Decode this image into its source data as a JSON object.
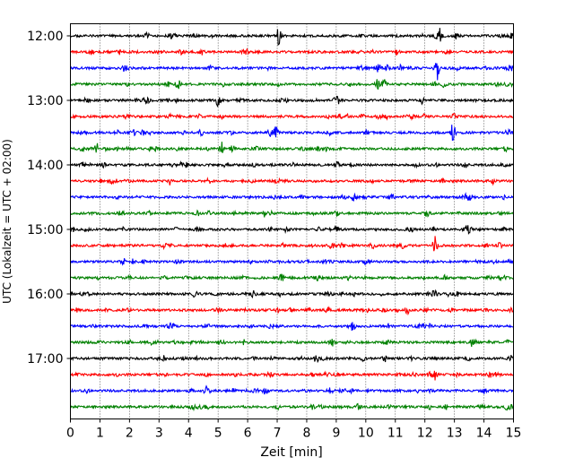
{
  "chart_data": {
    "type": "line",
    "title": "",
    "xlabel": "Zeit  [min]",
    "ylabel": "UTC (Lokalzeit = UTC + 02:00)",
    "xlim": [
      0,
      15
    ],
    "x_ticks": [
      "0",
      "1",
      "2",
      "3",
      "4",
      "5",
      "6",
      "7",
      "8",
      "9",
      "10",
      "11",
      "12",
      "13",
      "14",
      "15"
    ],
    "y_ticks": [
      "12:00",
      "13:00",
      "14:00",
      "15:00",
      "16:00",
      "17:00"
    ],
    "trace_interval_min": 15,
    "start_time": "12:00",
    "grid": {
      "vertical_dotted": true
    },
    "colors": [
      "#000000",
      "#ff0000",
      "#0000ff",
      "#008000"
    ],
    "series": [
      {
        "time": "12:00",
        "color": "#000000",
        "events": [
          {
            "t": 7.05,
            "amp": 8
          },
          {
            "t": 12.5,
            "amp": 8
          }
        ]
      },
      {
        "time": "12:15",
        "color": "#ff0000",
        "events": []
      },
      {
        "time": "12:30",
        "color": "#0000ff",
        "events": [
          {
            "t": 12.4,
            "amp": 15
          }
        ]
      },
      {
        "time": "12:45",
        "color": "#008000",
        "events": [
          {
            "t": 10.4,
            "amp": 6
          }
        ]
      },
      {
        "time": "13:00",
        "color": "#000000",
        "events": [
          {
            "t": 5.0,
            "amp": 4
          },
          {
            "t": 11.9,
            "amp": 4
          }
        ]
      },
      {
        "time": "13:15",
        "color": "#ff0000",
        "events": []
      },
      {
        "time": "13:30",
        "color": "#0000ff",
        "events": [
          {
            "t": 6.95,
            "amp": 6
          },
          {
            "t": 12.95,
            "amp": 13
          }
        ]
      },
      {
        "time": "13:45",
        "color": "#008000",
        "events": [
          {
            "t": 0.9,
            "amp": 6
          },
          {
            "t": 5.1,
            "amp": 7
          },
          {
            "t": 5.5,
            "amp": 4
          }
        ]
      },
      {
        "time": "14:00",
        "color": "#000000",
        "events": []
      },
      {
        "time": "14:15",
        "color": "#ff0000",
        "events": []
      },
      {
        "time": "14:30",
        "color": "#0000ff",
        "events": []
      },
      {
        "time": "14:45",
        "color": "#008000",
        "events": []
      },
      {
        "time": "15:00",
        "color": "#000000",
        "events": [
          {
            "t": 9.0,
            "amp": 4
          }
        ]
      },
      {
        "time": "15:15",
        "color": "#ff0000",
        "events": [
          {
            "t": 12.35,
            "amp": 9
          }
        ]
      },
      {
        "time": "15:30",
        "color": "#0000ff",
        "events": []
      },
      {
        "time": "15:45",
        "color": "#008000",
        "events": []
      },
      {
        "time": "16:00",
        "color": "#000000",
        "events": [
          {
            "t": 6.2,
            "amp": 4
          }
        ]
      },
      {
        "time": "16:15",
        "color": "#ff0000",
        "events": [
          {
            "t": 11.4,
            "amp": 4
          }
        ]
      },
      {
        "time": "16:30",
        "color": "#0000ff",
        "events": []
      },
      {
        "time": "16:45",
        "color": "#008000",
        "events": [
          {
            "t": 8.85,
            "amp": 4
          },
          {
            "t": 13.6,
            "amp": 4
          }
        ]
      },
      {
        "time": "17:00",
        "color": "#000000",
        "events": [
          {
            "t": 14.9,
            "amp": 4
          }
        ]
      },
      {
        "time": "17:15",
        "color": "#ff0000",
        "events": [
          {
            "t": 12.35,
            "amp": 6
          },
          {
            "t": 14.2,
            "amp": 4
          }
        ]
      },
      {
        "time": "17:30",
        "color": "#0000ff",
        "events": [
          {
            "t": 6.6,
            "amp": 4
          },
          {
            "t": 14.0,
            "amp": 3
          }
        ]
      },
      {
        "time": "17:45",
        "color": "#008000",
        "events": []
      }
    ]
  }
}
